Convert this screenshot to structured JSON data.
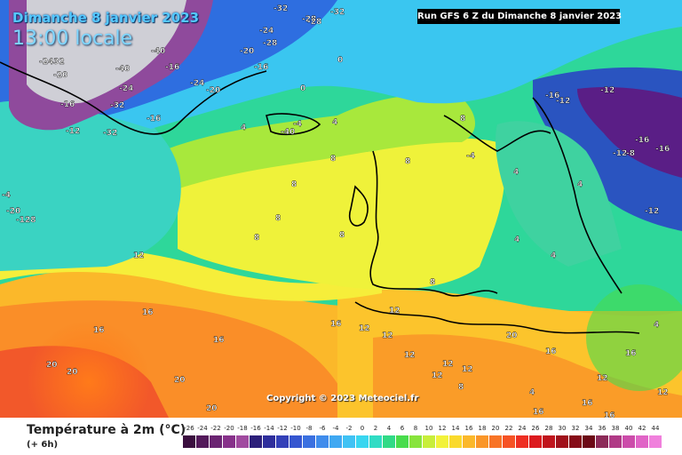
{
  "overlay": {
    "date": "Dimanche 8 janvier 2023",
    "local_time": "13:00 locale",
    "run_info": "Run GFS 6 Z du Dimanche 8 janvier 2023",
    "copyright": "Copyright © 2023 Meteociel.fr"
  },
  "legend": {
    "title": "Température à 2m (°C)",
    "subtitle": "(+ 6h)",
    "scale": [
      {
        "label": "-26",
        "color": "#3b0f3f"
      },
      {
        "label": "-24",
        "color": "#53195a"
      },
      {
        "label": "-22",
        "color": "#6b2472"
      },
      {
        "label": "-20",
        "color": "#87318a"
      },
      {
        "label": "-18",
        "color": "#a04a9f"
      },
      {
        "label": "-16",
        "color": "#2c1f7a"
      },
      {
        "label": "-14",
        "color": "#2e2e9c"
      },
      {
        "label": "-12",
        "color": "#3340b8"
      },
      {
        "label": "-10",
        "color": "#3556d0"
      },
      {
        "label": "-8",
        "color": "#3a70e0"
      },
      {
        "label": "-6",
        "color": "#3f8cec"
      },
      {
        "label": "-4",
        "color": "#3fa8f2"
      },
      {
        "label": "-2",
        "color": "#3fc2f4"
      },
      {
        "label": "0",
        "color": "#38d6f0"
      },
      {
        "label": "2",
        "color": "#30dcc4"
      },
      {
        "label": "4",
        "color": "#30da86"
      },
      {
        "label": "6",
        "color": "#48dc4c"
      },
      {
        "label": "8",
        "color": "#88e43c"
      },
      {
        "label": "10",
        "color": "#c8ee3a"
      },
      {
        "label": "12",
        "color": "#f2f23a"
      },
      {
        "label": "14",
        "color": "#fada2c"
      },
      {
        "label": "16",
        "color": "#fbb82a"
      },
      {
        "label": "18",
        "color": "#fa9628"
      },
      {
        "label": "20",
        "color": "#f87426"
      },
      {
        "label": "22",
        "color": "#f65224"
      },
      {
        "label": "24",
        "color": "#ee2e22"
      },
      {
        "label": "26",
        "color": "#dc1a1e"
      },
      {
        "label": "28",
        "color": "#c0141c"
      },
      {
        "label": "30",
        "color": "#a0101a"
      },
      {
        "label": "32",
        "color": "#860c18"
      },
      {
        "label": "34",
        "color": "#6c0a16"
      },
      {
        "label": "36",
        "color": "#8c2a58"
      },
      {
        "label": "38",
        "color": "#b03a86"
      },
      {
        "label": "40",
        "color": "#cc4caa"
      },
      {
        "label": "42",
        "color": "#e064c6"
      },
      {
        "label": "44",
        "color": "#f080dc"
      }
    ]
  },
  "map_labels": [
    {
      "text": "-32"
    },
    {
      "text": "-28"
    },
    {
      "text": "-32"
    },
    {
      "text": "-24"
    },
    {
      "text": "-28"
    },
    {
      "text": "-28"
    },
    {
      "text": "-2432"
    },
    {
      "text": "-20"
    },
    {
      "text": "-40"
    },
    {
      "text": "-40"
    },
    {
      "text": "-16"
    },
    {
      "text": "-20"
    },
    {
      "text": "-16"
    },
    {
      "text": "-24"
    },
    {
      "text": "-20"
    },
    {
      "text": "-24"
    },
    {
      "text": "-16"
    },
    {
      "text": "-32"
    },
    {
      "text": "-12"
    },
    {
      "text": "-32"
    },
    {
      "text": "-16"
    },
    {
      "text": "0"
    },
    {
      "text": "0"
    },
    {
      "text": "-4"
    },
    {
      "text": "-40"
    },
    {
      "text": "4"
    },
    {
      "text": "4"
    },
    {
      "text": "-4"
    },
    {
      "text": "-20"
    },
    {
      "text": "-128"
    },
    {
      "text": "8"
    },
    {
      "text": "8"
    },
    {
      "text": "8"
    },
    {
      "text": "8"
    },
    {
      "text": "8"
    },
    {
      "text": "-4"
    },
    {
      "text": "4"
    },
    {
      "text": "4"
    },
    {
      "text": "-16"
    },
    {
      "text": "-12"
    },
    {
      "text": "-16"
    },
    {
      "text": "-12"
    },
    {
      "text": "-8"
    },
    {
      "text": "-12"
    },
    {
      "text": "-16"
    },
    {
      "text": "-12"
    },
    {
      "text": "4"
    },
    {
      "text": "4"
    },
    {
      "text": "8"
    },
    {
      "text": "12"
    },
    {
      "text": "8"
    },
    {
      "text": "8"
    },
    {
      "text": "12"
    },
    {
      "text": "16"
    },
    {
      "text": "16"
    },
    {
      "text": "16"
    },
    {
      "text": "16"
    },
    {
      "text": "12"
    },
    {
      "text": "12"
    },
    {
      "text": "12"
    },
    {
      "text": "12"
    },
    {
      "text": "12"
    },
    {
      "text": "12"
    },
    {
      "text": "16"
    },
    {
      "text": "20"
    },
    {
      "text": "20"
    },
    {
      "text": "20"
    },
    {
      "text": "20"
    },
    {
      "text": "16"
    },
    {
      "text": "12"
    },
    {
      "text": "12"
    },
    {
      "text": "16"
    },
    {
      "text": "20"
    },
    {
      "text": "16"
    },
    {
      "text": "4"
    },
    {
      "text": "4"
    },
    {
      "text": "16"
    },
    {
      "text": "8"
    }
  ]
}
